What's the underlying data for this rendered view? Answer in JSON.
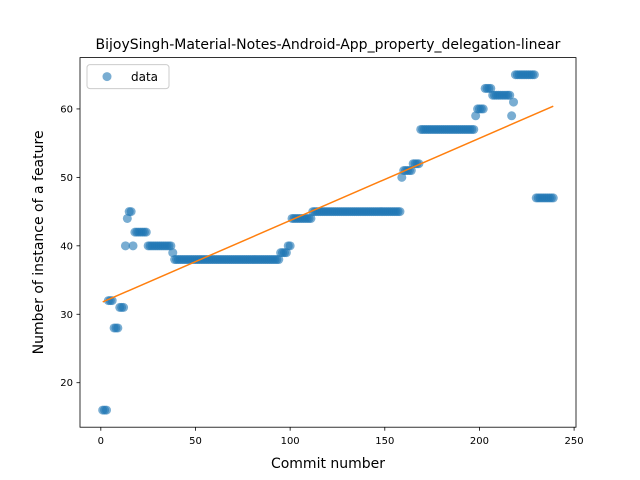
{
  "chart_data": {
    "type": "scatter",
    "title": "BijoySingh-Material-Notes-Android-App_property_delegation-linear",
    "xlabel": "Commit number",
    "ylabel": "Number of instance of a feature",
    "xlim": [
      -11,
      251
    ],
    "ylim": [
      13.5,
      67.5
    ],
    "xticks": [
      0,
      50,
      100,
      150,
      200,
      250
    ],
    "yticks": [
      20,
      30,
      40,
      50,
      60
    ],
    "grid": false,
    "legend": {
      "position": "top-left",
      "entries": [
        "data"
      ]
    },
    "colors": {
      "data": "#1f77b4",
      "fit": "#ff7f0e"
    },
    "series": [
      {
        "name": "data",
        "kind": "scatter",
        "points": [
          [
            1,
            16
          ],
          [
            2,
            16
          ],
          [
            3,
            16
          ],
          [
            4,
            32
          ],
          [
            5,
            32
          ],
          [
            6,
            32
          ],
          [
            7,
            28
          ],
          [
            8,
            28
          ],
          [
            9,
            28
          ],
          [
            10,
            31
          ],
          [
            11,
            31
          ],
          [
            12,
            31
          ],
          [
            13,
            40
          ],
          [
            14,
            44
          ],
          [
            15,
            45
          ],
          [
            16,
            45
          ],
          [
            17,
            40
          ],
          [
            18,
            42
          ],
          [
            19,
            42
          ],
          [
            20,
            42
          ],
          [
            21,
            42
          ],
          [
            22,
            42
          ],
          [
            23,
            42
          ],
          [
            24,
            42
          ],
          [
            25,
            40
          ],
          [
            26,
            40
          ],
          [
            27,
            40
          ],
          [
            28,
            40
          ],
          [
            29,
            40
          ],
          [
            30,
            40
          ],
          [
            31,
            40
          ],
          [
            32,
            40
          ],
          [
            33,
            40
          ],
          [
            34,
            40
          ],
          [
            35,
            40
          ],
          [
            36,
            40
          ],
          [
            37,
            40
          ],
          [
            38,
            39
          ],
          [
            39,
            38
          ],
          [
            40,
            38
          ],
          [
            41,
            38
          ],
          [
            42,
            38
          ],
          [
            43,
            38
          ],
          [
            44,
            38
          ],
          [
            45,
            38
          ],
          [
            46,
            38
          ],
          [
            47,
            38
          ],
          [
            48,
            38
          ],
          [
            49,
            38
          ],
          [
            50,
            38
          ],
          [
            51,
            38
          ],
          [
            52,
            38
          ],
          [
            53,
            38
          ],
          [
            54,
            38
          ],
          [
            55,
            38
          ],
          [
            56,
            38
          ],
          [
            57,
            38
          ],
          [
            58,
            38
          ],
          [
            59,
            38
          ],
          [
            60,
            38
          ],
          [
            61,
            38
          ],
          [
            62,
            38
          ],
          [
            63,
            38
          ],
          [
            64,
            38
          ],
          [
            65,
            38
          ],
          [
            66,
            38
          ],
          [
            67,
            38
          ],
          [
            68,
            38
          ],
          [
            69,
            38
          ],
          [
            70,
            38
          ],
          [
            71,
            38
          ],
          [
            72,
            38
          ],
          [
            73,
            38
          ],
          [
            74,
            38
          ],
          [
            75,
            38
          ],
          [
            76,
            38
          ],
          [
            77,
            38
          ],
          [
            78,
            38
          ],
          [
            79,
            38
          ],
          [
            80,
            38
          ],
          [
            81,
            38
          ],
          [
            82,
            38
          ],
          [
            83,
            38
          ],
          [
            84,
            38
          ],
          [
            85,
            38
          ],
          [
            86,
            38
          ],
          [
            87,
            38
          ],
          [
            88,
            38
          ],
          [
            89,
            38
          ],
          [
            90,
            38
          ],
          [
            91,
            38
          ],
          [
            92,
            38
          ],
          [
            93,
            38
          ],
          [
            94,
            38
          ],
          [
            95,
            39
          ],
          [
            96,
            39
          ],
          [
            97,
            39
          ],
          [
            98,
            39
          ],
          [
            99,
            40
          ],
          [
            100,
            40
          ],
          [
            101,
            44
          ],
          [
            102,
            44
          ],
          [
            103,
            44
          ],
          [
            104,
            44
          ],
          [
            105,
            44
          ],
          [
            106,
            44
          ],
          [
            107,
            44
          ],
          [
            108,
            44
          ],
          [
            109,
            44
          ],
          [
            110,
            44
          ],
          [
            111,
            44
          ],
          [
            112,
            45
          ],
          [
            113,
            45
          ],
          [
            114,
            45
          ],
          [
            115,
            45
          ],
          [
            116,
            45
          ],
          [
            117,
            45
          ],
          [
            118,
            45
          ],
          [
            119,
            45
          ],
          [
            120,
            45
          ],
          [
            121,
            45
          ],
          [
            122,
            45
          ],
          [
            123,
            45
          ],
          [
            124,
            45
          ],
          [
            125,
            45
          ],
          [
            126,
            45
          ],
          [
            127,
            45
          ],
          [
            128,
            45
          ],
          [
            129,
            45
          ],
          [
            130,
            45
          ],
          [
            131,
            45
          ],
          [
            132,
            45
          ],
          [
            133,
            45
          ],
          [
            134,
            45
          ],
          [
            135,
            45
          ],
          [
            136,
            45
          ],
          [
            137,
            45
          ],
          [
            138,
            45
          ],
          [
            139,
            45
          ],
          [
            140,
            45
          ],
          [
            141,
            45
          ],
          [
            142,
            45
          ],
          [
            143,
            45
          ],
          [
            144,
            45
          ],
          [
            145,
            45
          ],
          [
            146,
            45
          ],
          [
            147,
            45
          ],
          [
            148,
            45
          ],
          [
            149,
            45
          ],
          [
            150,
            45
          ],
          [
            151,
            45
          ],
          [
            152,
            45
          ],
          [
            153,
            45
          ],
          [
            154,
            45
          ],
          [
            155,
            45
          ],
          [
            156,
            45
          ],
          [
            157,
            45
          ],
          [
            158,
            45
          ],
          [
            159,
            50
          ],
          [
            160,
            51
          ],
          [
            161,
            51
          ],
          [
            162,
            51
          ],
          [
            163,
            51
          ],
          [
            164,
            51
          ],
          [
            165,
            52
          ],
          [
            166,
            52
          ],
          [
            167,
            52
          ],
          [
            168,
            52
          ],
          [
            169,
            57
          ],
          [
            170,
            57
          ],
          [
            171,
            57
          ],
          [
            172,
            57
          ],
          [
            173,
            57
          ],
          [
            174,
            57
          ],
          [
            175,
            57
          ],
          [
            176,
            57
          ],
          [
            177,
            57
          ],
          [
            178,
            57
          ],
          [
            179,
            57
          ],
          [
            180,
            57
          ],
          [
            181,
            57
          ],
          [
            182,
            57
          ],
          [
            183,
            57
          ],
          [
            184,
            57
          ],
          [
            185,
            57
          ],
          [
            186,
            57
          ],
          [
            187,
            57
          ],
          [
            188,
            57
          ],
          [
            189,
            57
          ],
          [
            190,
            57
          ],
          [
            191,
            57
          ],
          [
            192,
            57
          ],
          [
            193,
            57
          ],
          [
            194,
            57
          ],
          [
            195,
            57
          ],
          [
            196,
            57
          ],
          [
            197,
            57
          ],
          [
            198,
            59
          ],
          [
            199,
            60
          ],
          [
            200,
            60
          ],
          [
            201,
            60
          ],
          [
            202,
            60
          ],
          [
            203,
            63
          ],
          [
            204,
            63
          ],
          [
            205,
            63
          ],
          [
            206,
            63
          ],
          [
            207,
            62
          ],
          [
            208,
            62
          ],
          [
            209,
            62
          ],
          [
            210,
            62
          ],
          [
            211,
            62
          ],
          [
            212,
            62
          ],
          [
            213,
            62
          ],
          [
            214,
            62
          ],
          [
            215,
            62
          ],
          [
            216,
            62
          ],
          [
            217,
            59
          ],
          [
            218,
            61
          ],
          [
            219,
            65
          ],
          [
            220,
            65
          ],
          [
            221,
            65
          ],
          [
            222,
            65
          ],
          [
            223,
            65
          ],
          [
            224,
            65
          ],
          [
            225,
            65
          ],
          [
            226,
            65
          ],
          [
            227,
            65
          ],
          [
            228,
            65
          ],
          [
            229,
            65
          ],
          [
            230,
            47
          ],
          [
            231,
            47
          ],
          [
            232,
            47
          ],
          [
            233,
            47
          ],
          [
            234,
            47
          ],
          [
            235,
            47
          ],
          [
            236,
            47
          ],
          [
            237,
            47
          ],
          [
            238,
            47
          ],
          [
            239,
            47
          ]
        ]
      },
      {
        "kind": "line",
        "points": [
          [
            1,
            31.8
          ],
          [
            239,
            60.4
          ]
        ]
      }
    ]
  }
}
